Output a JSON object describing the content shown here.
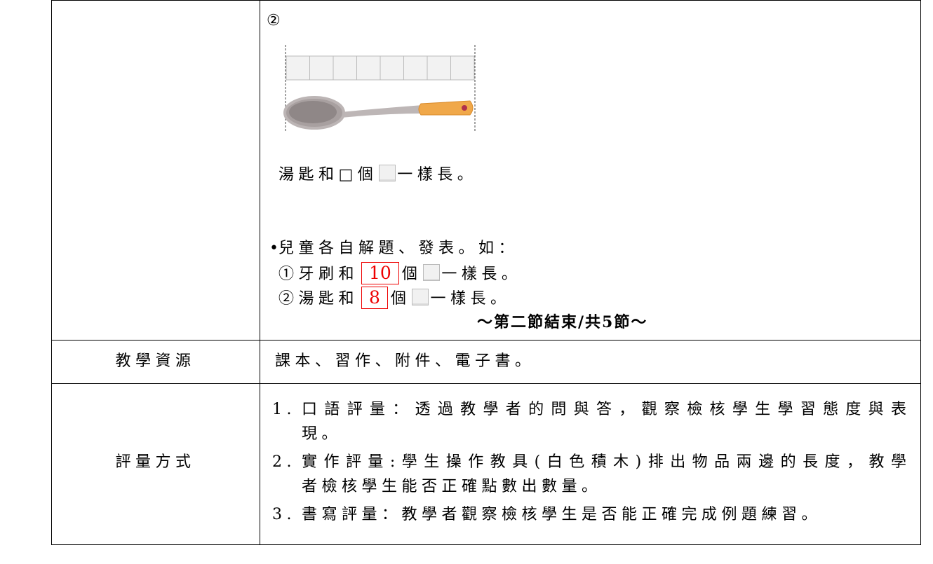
{
  "lesson_table": {
    "activity_row": {
      "marker": "②",
      "question": {
        "before": "湯匙和□個",
        "after": "一樣長。"
      },
      "bullet": "兒童各自解題、發表。如：",
      "answers": [
        {
          "before": "①牙刷和",
          "value": 10,
          "unit": "個",
          "after": "一樣長。"
        },
        {
          "before": "②湯匙和",
          "value": 8,
          "unit": "個",
          "after": "一樣長。"
        }
      ],
      "end_note": "～第二節結束/共5節～"
    },
    "resources_row": {
      "label": "教學資源",
      "content": "課本、習作、附件、電子書。"
    },
    "assessment_row": {
      "label": "評量方式",
      "items": [
        {
          "number": "1.",
          "lines": [
            "口語評量：透過教學者的問與答，觀察檢核學生學習態度與表",
            "現。"
          ]
        },
        {
          "number": "2.",
          "lines": [
            "實作評量:學生操作教具(白色積木)排出物品兩邊的長度，教學",
            "者檢核學生能否正確點數出數量。"
          ]
        },
        {
          "number": "3.",
          "lines": [
            "書寫評量：教學者觀察檢核學生是否能正確完成例題練習。"
          ]
        }
      ]
    }
  }
}
